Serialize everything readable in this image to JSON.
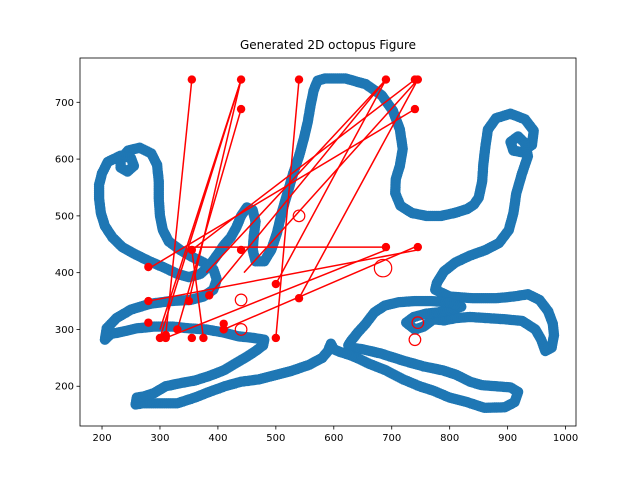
{
  "chart_data": {
    "type": "scatter",
    "title": "Generated 2D octopus Figure",
    "xlabel": "",
    "ylabel": "",
    "xlim": [
      162,
      1018
    ],
    "ylim": [
      130,
      778
    ],
    "xticks": [
      200,
      300,
      400,
      500,
      600,
      700,
      800,
      900,
      1000
    ],
    "yticks": [
      200,
      300,
      400,
      500,
      600,
      700
    ],
    "grid": false,
    "colors": {
      "outline": "#1f77b4",
      "segments": "#ff0000",
      "endpoints": "#ff0000",
      "circles": "#ff0000"
    },
    "outline_points": [
      [
        585,
        742
      ],
      [
        620,
        742
      ],
      [
        655,
        732
      ],
      [
        683,
        712
      ],
      [
        702,
        685
      ],
      [
        714,
        652
      ],
      [
        719,
        618
      ],
      [
        714,
        588
      ],
      [
        707,
        565
      ],
      [
        706,
        540
      ],
      [
        715,
        518
      ],
      [
        735,
        505
      ],
      [
        760,
        500
      ],
      [
        785,
        500
      ],
      [
        808,
        505
      ],
      [
        830,
        512
      ],
      [
        842,
        520
      ],
      [
        850,
        532
      ],
      [
        856,
        560
      ],
      [
        858,
        590
      ],
      [
        862,
        625
      ],
      [
        866,
        652
      ],
      [
        880,
        672
      ],
      [
        905,
        680
      ],
      [
        930,
        670
      ],
      [
        945,
        650
      ],
      [
        942,
        625
      ],
      [
        925,
        612
      ],
      [
        910,
        615
      ],
      [
        905,
        630
      ],
      [
        918,
        640
      ],
      [
        930,
        628
      ],
      [
        935,
        605
      ],
      [
        925,
        575
      ],
      [
        915,
        540
      ],
      [
        910,
        505
      ],
      [
        902,
        475
      ],
      [
        885,
        452
      ],
      [
        862,
        440
      ],
      [
        835,
        430
      ],
      [
        810,
        418
      ],
      [
        790,
        402
      ],
      [
        778,
        382
      ],
      [
        775,
        370
      ],
      [
        800,
        358
      ],
      [
        840,
        355
      ],
      [
        880,
        355
      ],
      [
        910,
        358
      ],
      [
        935,
        362
      ],
      [
        955,
        352
      ],
      [
        970,
        332
      ],
      [
        978,
        310
      ],
      [
        980,
        290
      ],
      [
        976,
        268
      ],
      [
        965,
        262
      ],
      [
        958,
        282
      ],
      [
        948,
        300
      ],
      [
        925,
        315
      ],
      [
        895,
        318
      ],
      [
        865,
        320
      ],
      [
        835,
        322
      ],
      [
        810,
        320
      ],
      [
        790,
        316
      ],
      [
        772,
        318
      ],
      [
        755,
        305
      ],
      [
        740,
        300
      ],
      [
        725,
        312
      ],
      [
        738,
        322
      ],
      [
        760,
        328
      ],
      [
        780,
        330
      ],
      [
        800,
        334
      ],
      [
        820,
        340
      ],
      [
        795,
        348
      ],
      [
        768,
        350
      ],
      [
        740,
        350
      ],
      [
        712,
        348
      ],
      [
        688,
        342
      ],
      [
        670,
        330
      ],
      [
        655,
        310
      ],
      [
        640,
        293
      ],
      [
        630,
        280
      ],
      [
        625,
        272
      ],
      [
        630,
        268
      ],
      [
        650,
        265
      ],
      [
        680,
        258
      ],
      [
        720,
        245
      ],
      [
        755,
        235
      ],
      [
        788,
        228
      ],
      [
        812,
        220
      ],
      [
        835,
        208
      ],
      [
        855,
        202
      ],
      [
        880,
        200
      ],
      [
        905,
        198
      ],
      [
        918,
        190
      ],
      [
        912,
        172
      ],
      [
        895,
        163
      ],
      [
        860,
        162
      ],
      [
        830,
        172
      ],
      [
        800,
        180
      ],
      [
        772,
        192
      ],
      [
        748,
        200
      ],
      [
        720,
        212
      ],
      [
        690,
        228
      ],
      [
        660,
        240
      ],
      [
        640,
        250
      ],
      [
        625,
        256
      ],
      [
        612,
        260
      ],
      [
        600,
        265
      ],
      [
        595,
        275
      ],
      [
        590,
        262
      ],
      [
        580,
        250
      ],
      [
        558,
        238
      ],
      [
        530,
        228
      ],
      [
        500,
        220
      ],
      [
        470,
        212
      ],
      [
        440,
        208
      ],
      [
        412,
        200
      ],
      [
        385,
        190
      ],
      [
        360,
        180
      ],
      [
        330,
        170
      ],
      [
        300,
        170
      ],
      [
        270,
        170
      ],
      [
        258,
        168
      ],
      [
        260,
        180
      ],
      [
        272,
        182
      ],
      [
        290,
        188
      ],
      [
        310,
        200
      ],
      [
        338,
        206
      ],
      [
        360,
        210
      ],
      [
        385,
        218
      ],
      [
        410,
        228
      ],
      [
        430,
        240
      ],
      [
        450,
        252
      ],
      [
        465,
        262
      ],
      [
        478,
        272
      ],
      [
        480,
        282
      ],
      [
        462,
        285
      ],
      [
        435,
        288
      ],
      [
        408,
        295
      ],
      [
        380,
        300
      ],
      [
        350,
        302
      ],
      [
        322,
        305
      ],
      [
        290,
        305
      ],
      [
        260,
        302
      ],
      [
        235,
        296
      ],
      [
        215,
        292
      ],
      [
        205,
        282
      ],
      [
        208,
        302
      ],
      [
        225,
        320
      ],
      [
        250,
        335
      ],
      [
        282,
        345
      ],
      [
        318,
        350
      ],
      [
        352,
        352
      ],
      [
        375,
        358
      ],
      [
        392,
        370
      ],
      [
        398,
        388
      ],
      [
        392,
        406
      ],
      [
        375,
        418
      ],
      [
        355,
        428
      ],
      [
        335,
        440
      ],
      [
        315,
        455
      ],
      [
        305,
        475
      ],
      [
        300,
        500
      ],
      [
        298,
        530
      ],
      [
        298,
        560
      ],
      [
        295,
        590
      ],
      [
        285,
        610
      ],
      [
        265,
        620
      ],
      [
        245,
        615
      ],
      [
        232,
        600
      ],
      [
        232,
        585
      ],
      [
        244,
        578
      ],
      [
        255,
        588
      ],
      [
        250,
        602
      ],
      [
        232,
        606
      ],
      [
        210,
        595
      ],
      [
        200,
        575
      ],
      [
        195,
        555
      ],
      [
        195,
        530
      ],
      [
        198,
        505
      ],
      [
        205,
        482
      ],
      [
        218,
        462
      ],
      [
        235,
        445
      ],
      [
        258,
        432
      ],
      [
        282,
        420
      ],
      [
        305,
        410
      ],
      [
        330,
        398
      ],
      [
        350,
        392
      ],
      [
        370,
        398
      ],
      [
        385,
        412
      ],
      [
        398,
        430
      ],
      [
        410,
        448
      ],
      [
        422,
        462
      ],
      [
        432,
        480
      ],
      [
        440,
        500
      ],
      [
        450,
        515
      ],
      [
        460,
        510
      ],
      [
        465,
        490
      ],
      [
        462,
        465
      ],
      [
        460,
        440
      ],
      [
        465,
        420
      ],
      [
        480,
        420
      ],
      [
        492,
        440
      ],
      [
        502,
        470
      ],
      [
        510,
        505
      ],
      [
        520,
        540
      ],
      [
        530,
        575
      ],
      [
        540,
        605
      ],
      [
        548,
        635
      ],
      [
        555,
        665
      ],
      [
        560,
        695
      ],
      [
        565,
        720
      ],
      [
        572,
        738
      ],
      [
        585,
        742
      ]
    ],
    "segments": [
      [
        [
          355,
          740
        ],
        [
          310,
          290
        ]
      ],
      [
        [
          440,
          740
        ],
        [
          300,
          300
        ]
      ],
      [
        [
          440,
          740
        ],
        [
          350,
          350
        ]
      ],
      [
        [
          440,
          688
        ],
        [
          330,
          300
        ]
      ],
      [
        [
          540,
          740
        ],
        [
          500,
          285
        ]
      ],
      [
        [
          690,
          740
        ],
        [
          380,
          400
        ]
      ],
      [
        [
          740,
          740
        ],
        [
          355,
          440
        ]
      ],
      [
        [
          745,
          740
        ],
        [
          445,
          400
        ]
      ],
      [
        [
          740,
          688
        ],
        [
          285,
          410
        ]
      ],
      [
        [
          745,
          440
        ],
        [
          280,
          350
        ]
      ],
      [
        [
          690,
          440
        ],
        [
          310,
          285
        ]
      ],
      [
        [
          690,
          445
        ],
        [
          350,
          445
        ]
      ],
      [
        [
          740,
          445
        ],
        [
          410,
          300
        ]
      ],
      [
        [
          440,
          740
        ],
        [
          300,
          285
        ]
      ],
      [
        [
          355,
          440
        ],
        [
          375,
          285
        ]
      ],
      [
        [
          690,
          740
        ],
        [
          385,
          360
        ]
      ],
      [
        [
          745,
          740
        ],
        [
          540,
          355
        ]
      ],
      [
        [
          690,
          740
        ],
        [
          500,
          380
        ]
      ]
    ],
    "endpoints": [
      [
        355,
        740
      ],
      [
        440,
        740
      ],
      [
        440,
        688
      ],
      [
        540,
        740
      ],
      [
        690,
        740
      ],
      [
        740,
        740
      ],
      [
        745,
        740
      ],
      [
        740,
        688
      ],
      [
        280,
        410
      ],
      [
        280,
        350
      ],
      [
        280,
        312
      ],
      [
        300,
        285
      ],
      [
        310,
        290
      ],
      [
        330,
        300
      ],
      [
        350,
        350
      ],
      [
        355,
        440
      ],
      [
        375,
        285
      ],
      [
        385,
        360
      ],
      [
        410,
        300
      ],
      [
        410,
        310
      ],
      [
        440,
        440
      ],
      [
        500,
        285
      ],
      [
        500,
        380
      ],
      [
        540,
        355
      ],
      [
        690,
        445
      ],
      [
        745,
        445
      ],
      [
        355,
        285
      ],
      [
        310,
        285
      ]
    ],
    "circles": [
      {
        "center": [
          540,
          500
        ],
        "r": 10
      },
      {
        "center": [
          685,
          408
        ],
        "r": 15
      },
      {
        "center": [
          440,
          352
        ],
        "r": 10
      },
      {
        "center": [
          440,
          300
        ],
        "r": 10
      },
      {
        "center": [
          745,
          312
        ],
        "r": 10
      },
      {
        "center": [
          740,
          282
        ],
        "r": 10
      }
    ]
  }
}
